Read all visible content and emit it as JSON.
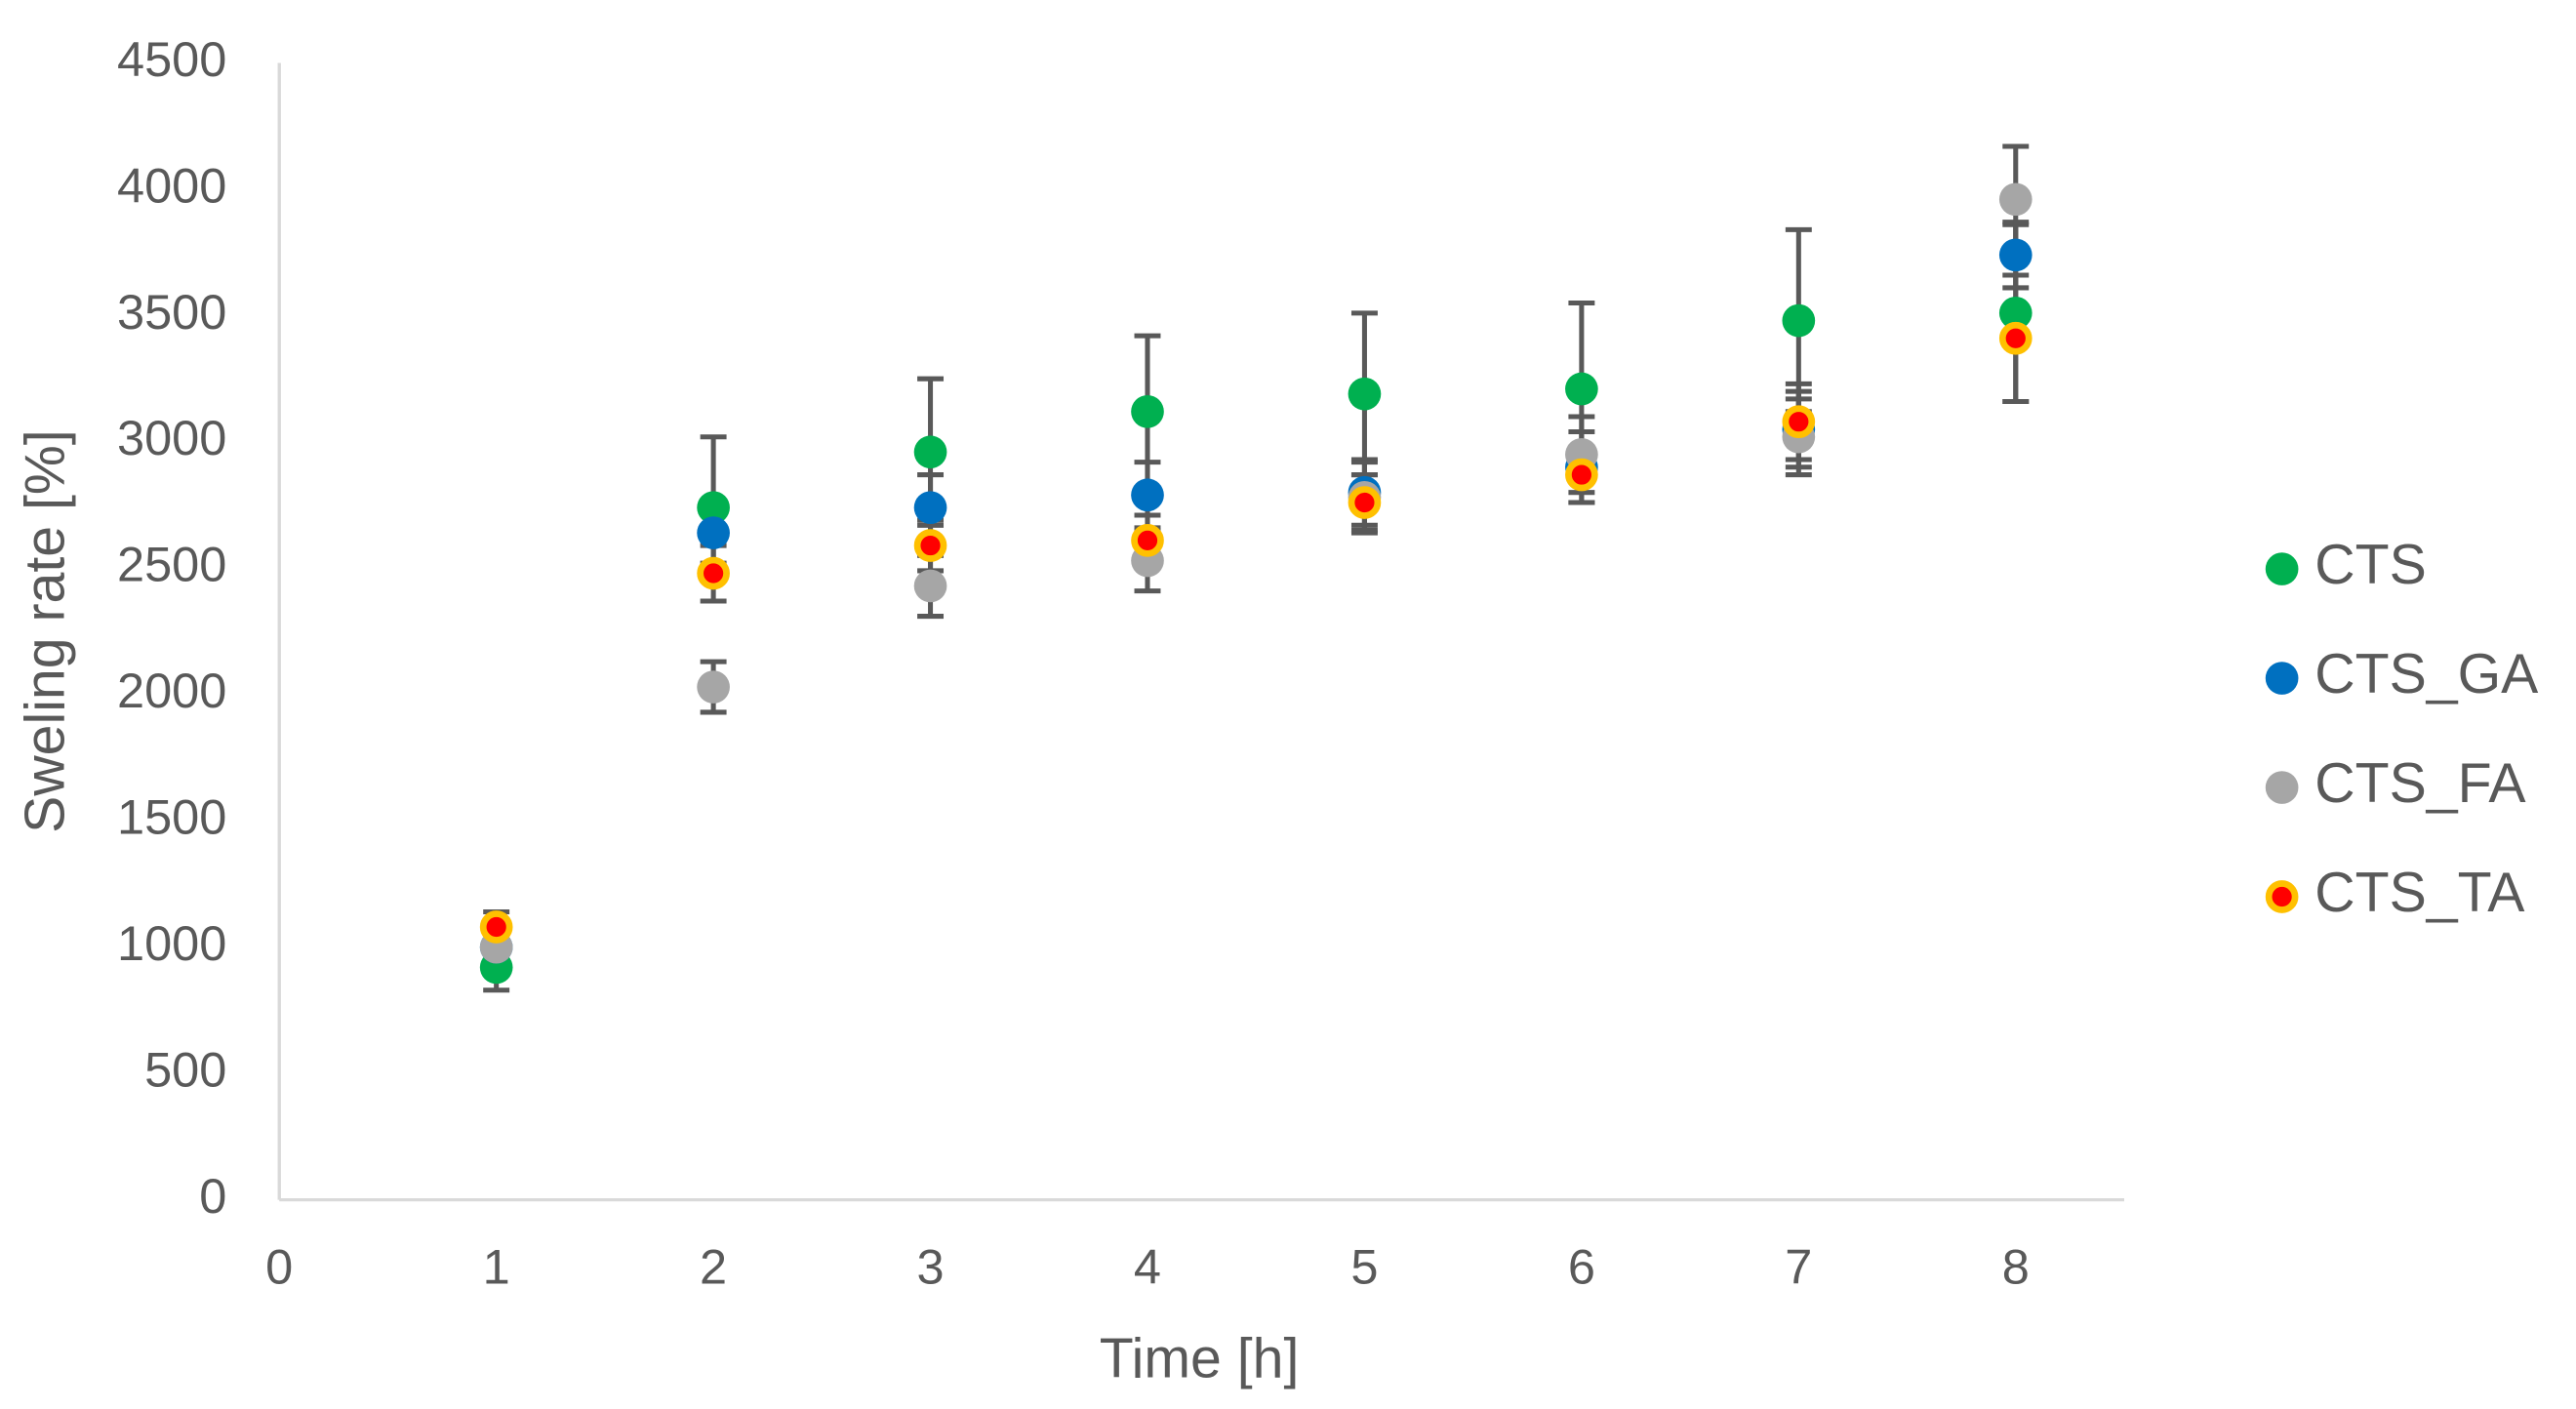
{
  "chart_data": {
    "type": "scatter",
    "xlabel": "Time [h]",
    "ylabel": "Sweling rate [%]",
    "x": [
      1,
      2,
      3,
      4,
      5,
      6,
      7,
      8
    ],
    "xlim": [
      0,
      8.5
    ],
    "xticks": [
      0,
      1,
      2,
      3,
      4,
      5,
      6,
      7,
      8
    ],
    "ylim": [
      0,
      4500
    ],
    "yticks": [
      0,
      500,
      1000,
      1500,
      2000,
      2500,
      3000,
      3500,
      4000,
      4500
    ],
    "grid": false,
    "legend": "right",
    "errorbar_color": "#595959",
    "series": [
      {
        "name": "CTS",
        "color": "#00b050",
        "values": [
          920,
          2740,
          2960,
          3120,
          3190,
          3210,
          3480,
          3510
        ],
        "errors": [
          90,
          280,
          290,
          300,
          320,
          340,
          360,
          350
        ]
      },
      {
        "name": "CTS_GA",
        "color": "#0070c0",
        "values": [
          1000,
          2640,
          2740,
          2790,
          2800,
          2900,
          3050,
          3740
        ],
        "errors": [
          100,
          120,
          130,
          130,
          130,
          140,
          150,
          130
        ]
      },
      {
        "name": "CTS_FA",
        "color": "#a6a6a6",
        "values": [
          1000,
          2030,
          2430,
          2530,
          2780,
          2950,
          3020,
          3960
        ],
        "errors": [
          100,
          100,
          120,
          120,
          140,
          150,
          150,
          210
        ]
      },
      {
        "name": "CTS_TA",
        "color": "#ff0000",
        "edgecolor": "#ffc000",
        "values": [
          1080,
          2480,
          2590,
          2610,
          2760,
          2870,
          3080,
          3410
        ],
        "errors": [
          60,
          110,
          100,
          100,
          110,
          110,
          150,
          250
        ]
      }
    ]
  }
}
